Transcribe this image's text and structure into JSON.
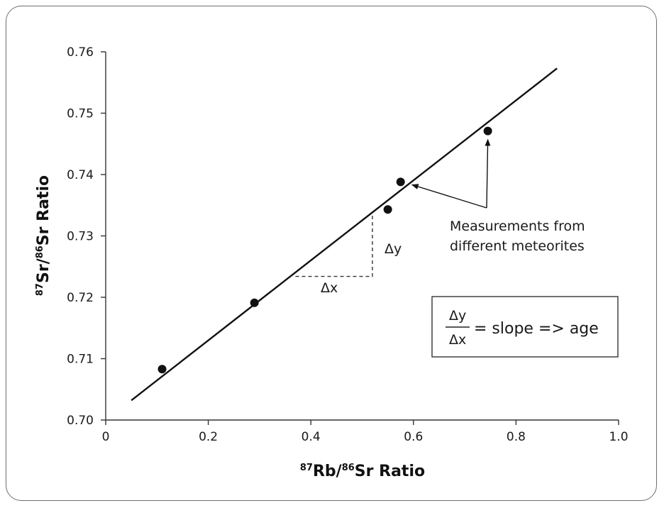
{
  "chart_data": {
    "type": "scatter",
    "xlabel": {
      "sup1": "87",
      "main1": "Rb/",
      "sup2": "86",
      "main2": "Sr Ratio"
    },
    "ylabel": {
      "sup1": "87",
      "main1": "Sr/",
      "sup2": "86",
      "main2": "Sr Ratio"
    },
    "xlim": [
      0,
      1.0
    ],
    "ylim": [
      0.7,
      0.76
    ],
    "x_ticks": [
      "0",
      "0.2",
      "0.4",
      "0.6",
      "0.8",
      "1.0"
    ],
    "y_ticks": [
      "0.70",
      "0.71",
      "0.72",
      "0.73",
      "0.74",
      "0.75",
      "0.76"
    ],
    "grid": false,
    "points": [
      {
        "x": 0.11,
        "y": 0.7083
      },
      {
        "x": 0.29,
        "y": 0.7191
      },
      {
        "x": 0.55,
        "y": 0.7343
      },
      {
        "x": 0.575,
        "y": 0.7388
      },
      {
        "x": 0.745,
        "y": 0.7471
      }
    ],
    "fit_line": {
      "x": [
        0.05,
        0.88
      ],
      "y": [
        0.7032,
        0.7573
      ]
    },
    "delta_guide": {
      "x_start": 0.37,
      "x_end": 0.52,
      "y_low": 0.7234,
      "y_high": 0.7334
    },
    "annotations": {
      "delta_x": "Δx",
      "delta_y": "Δy",
      "measurements_line1": "Measurements from",
      "measurements_line2": "different meteorites",
      "equation_numerator": "Δy",
      "equation_denominator": "Δx",
      "equation_rest": "= slope => age"
    },
    "colors": {
      "marks": "#111111",
      "axis": "#333333"
    }
  }
}
